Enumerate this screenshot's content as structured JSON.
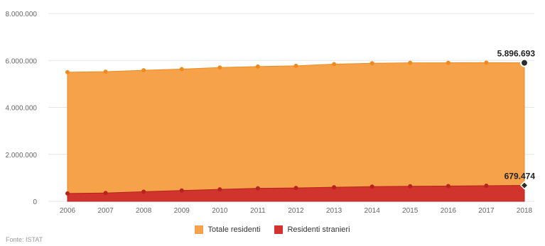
{
  "chart_data": {
    "type": "area",
    "x": [
      "2006",
      "2007",
      "2008",
      "2009",
      "2010",
      "2011",
      "2012",
      "2013",
      "2014",
      "2015",
      "2016",
      "2017",
      "2018"
    ],
    "ylim": [
      0,
      8000000
    ],
    "yticks": [
      0,
      2000000,
      4000000,
      6000000,
      8000000
    ],
    "ytick_labels": [
      "0",
      "2.000.000",
      "4.000.000",
      "6.000.000",
      "8.000.000"
    ],
    "grid": true,
    "legend_position": "bottom",
    "series": [
      {
        "name": "Totale residenti",
        "color": "#f5a24a",
        "point_color": "#f08a1c",
        "values": [
          5500000,
          5520000,
          5580000,
          5630000,
          5700000,
          5740000,
          5770000,
          5840000,
          5880000,
          5900000,
          5900000,
          5905000,
          5896693
        ]
      },
      {
        "name": "Residenti stranieri",
        "color": "#d0342c",
        "point_color": "#b5241d",
        "values": [
          335000,
          355000,
          410000,
          460000,
          510000,
          555000,
          570000,
          600000,
          625000,
          640000,
          650000,
          665000,
          679474
        ]
      }
    ],
    "annotations": [
      {
        "series": 0,
        "index": 12,
        "label": "5.896.693"
      },
      {
        "series": 1,
        "index": 12,
        "label": "679.474"
      }
    ]
  },
  "legend": {
    "items": [
      {
        "label": "Totale residenti",
        "color": "#f5a24a"
      },
      {
        "label": "Residenti stranieri",
        "color": "#d0342c"
      }
    ]
  },
  "source": "Fonte: ISTAT"
}
